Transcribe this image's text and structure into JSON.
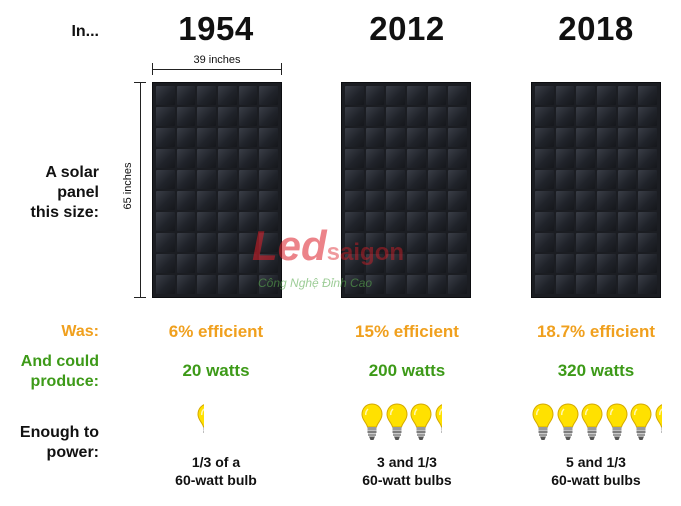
{
  "row_labels": {
    "in": "In...",
    "panel": "A solar\npanel\nthis size:",
    "was": "Was:",
    "produce": "And could\nproduce:",
    "power": "Enough to\npower:"
  },
  "dimensions": {
    "width": "39 inches",
    "height": "65 inches"
  },
  "columns": [
    {
      "year": "1954",
      "efficiency": "6% efficient",
      "watts": "20 watts",
      "power_line1": "1/3 of a",
      "power_line2": "60-watt bulb",
      "bulbs": 0.33
    },
    {
      "year": "2012",
      "efficiency": "15% efficient",
      "watts": "200 watts",
      "power_line1": "3 and 1/3",
      "power_line2": "60-watt bulbs",
      "bulbs": 3.33
    },
    {
      "year": "2018",
      "efficiency": "18.7% efficient",
      "watts": "320 watts",
      "power_line1": "5 and 1/3",
      "power_line2": "60-watt bulbs",
      "bulbs": 5.33
    }
  ],
  "watermark": {
    "brand_a": "Led",
    "brand_b": "saigon",
    "tagline": "Công Nghệ Đỉnh Cao"
  },
  "colors": {
    "was": "#f0a01e",
    "produce": "#3d9a18",
    "bulb": "#ffe100",
    "panel": "#1b1d22"
  },
  "icons": {
    "bulb": "light-bulb-icon"
  }
}
